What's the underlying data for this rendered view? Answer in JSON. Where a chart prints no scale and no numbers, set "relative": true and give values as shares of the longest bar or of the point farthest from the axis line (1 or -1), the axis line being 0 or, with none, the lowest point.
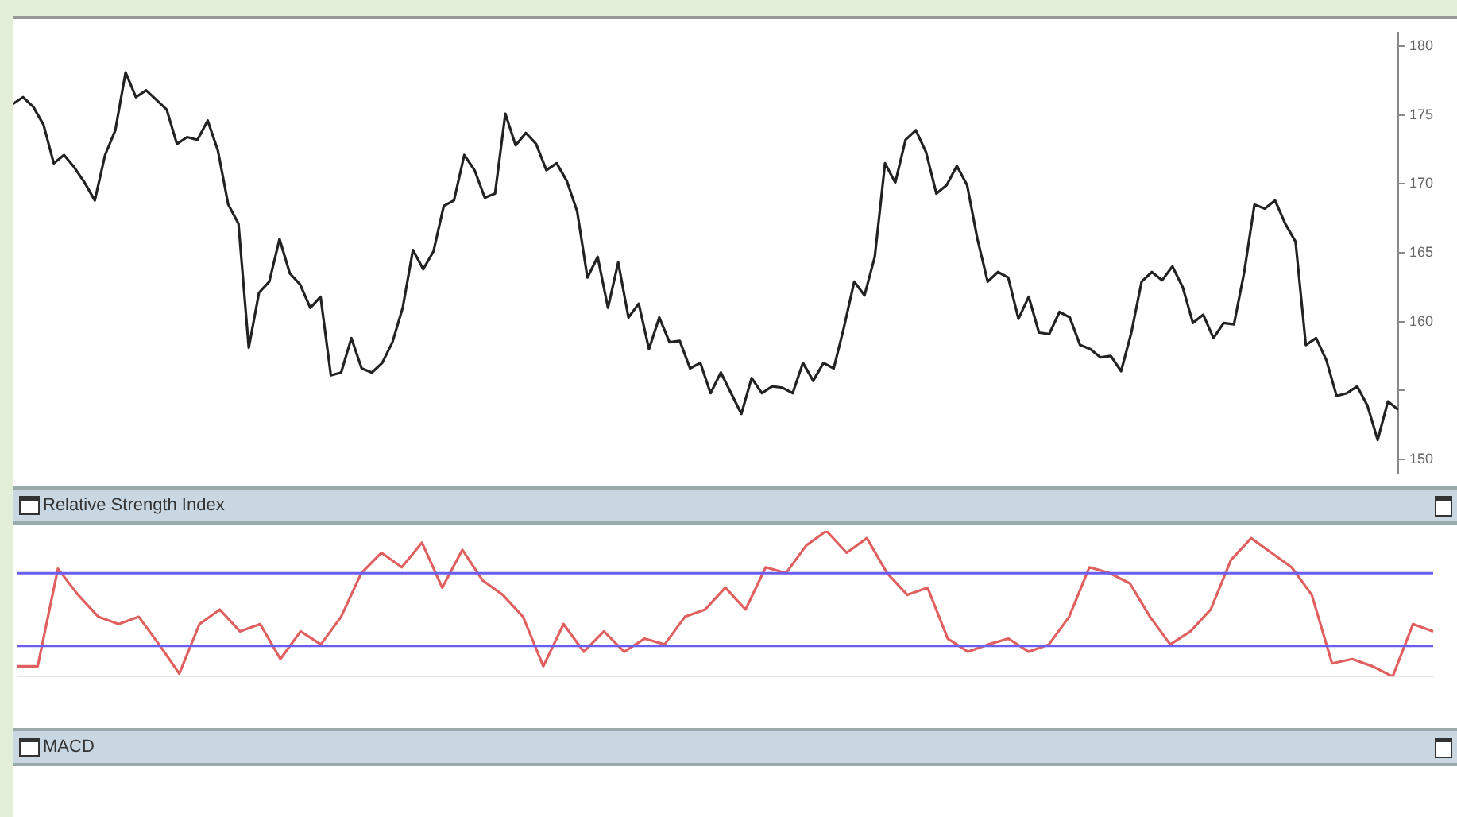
{
  "chart_data": [
    {
      "type": "line",
      "categories": [
        null,
        null,
        null,
        null,
        null,
        null,
        null,
        null,
        null,
        null,
        null,
        null,
        null,
        null,
        null,
        null,
        null,
        null,
        null,
        null,
        null,
        null,
        null,
        null,
        null,
        null,
        null,
        null,
        null,
        null,
        null,
        null,
        null,
        null,
        null,
        null,
        null,
        null,
        null,
        null,
        null,
        null,
        null,
        null,
        null,
        null,
        null,
        null,
        null,
        null,
        null,
        null,
        null,
        null,
        null,
        null,
        null,
        null,
        null,
        null,
        null,
        null,
        null,
        null,
        null,
        null,
        null,
        null,
        null,
        null,
        null,
        null,
        null,
        null,
        null,
        null,
        null,
        null,
        null,
        null,
        null,
        null,
        null,
        null,
        null,
        null,
        null,
        null,
        null,
        null,
        null,
        null,
        null,
        null,
        null,
        null,
        null,
        null,
        null,
        null,
        null,
        null,
        null,
        null,
        null,
        null,
        null,
        null,
        null,
        null,
        null,
        null,
        null,
        null,
        null,
        null,
        null,
        null,
        null,
        null,
        null,
        null,
        null,
        null,
        null,
        null,
        null,
        null,
        null,
        null,
        null,
        null,
        null,
        null,
        null,
        null
      ],
      "series": [
        {
          "color": "#222222",
          "values": [
            175.8,
            176.3,
            175.6,
            174.3,
            171.5,
            172.1,
            171.2,
            170.1,
            168.8,
            172.1,
            173.9,
            178.1,
            176.3,
            176.8,
            176.1,
            175.4,
            172.9,
            173.4,
            173.2,
            174.6,
            172.4,
            168.5,
            167.1,
            158.1,
            162.1,
            162.9,
            166.0,
            163.5,
            162.7,
            161.0,
            161.8,
            156.1,
            156.3,
            158.8,
            156.6,
            156.3,
            157.0,
            158.5,
            161.0,
            165.2,
            163.8,
            165.1,
            168.4,
            168.8,
            172.1,
            171.0,
            169.0,
            169.3,
            175.1,
            172.8,
            173.7,
            172.9,
            171.0,
            171.5,
            170.2,
            168.0,
            163.2,
            164.7,
            161.0,
            164.3,
            160.3,
            161.3,
            158.0,
            160.3,
            158.5,
            158.6,
            156.6,
            157.0,
            154.8,
            156.3,
            154.8,
            153.3,
            155.9,
            154.8,
            155.3,
            155.2,
            154.8,
            157.0,
            155.7,
            157.0,
            156.6,
            159.6,
            162.9,
            161.9,
            164.7,
            171.5,
            170.1,
            173.2,
            173.9,
            172.3,
            169.3,
            169.9,
            171.3,
            169.9,
            166.0,
            162.9,
            163.6,
            163.2,
            160.2,
            161.8,
            159.2,
            159.1,
            160.7,
            160.3,
            158.3,
            158.0,
            157.4,
            157.5,
            156.4,
            159.2,
            162.9,
            163.6,
            163.0,
            164.0,
            162.5,
            159.9,
            160.5,
            158.8,
            159.9,
            159.8,
            163.6,
            168.5,
            168.2,
            168.8,
            167.1,
            165.8,
            158.3,
            158.8,
            157.2,
            154.6,
            154.8,
            155.3,
            153.9,
            151.4,
            154.2,
            153.6
          ]
        }
      ],
      "ylim": [
        149,
        181
      ],
      "yticks": [
        150,
        {
          "value": 155,
          "label": null
        },
        160,
        165,
        170,
        175,
        180
      ],
      "tick_labels": "y"
    },
    {
      "type": "line",
      "title": "Relative Strength Index",
      "relative": true,
      "categories": [
        null,
        null,
        null,
        null,
        null,
        null,
        null,
        null,
        null,
        null,
        null,
        null,
        null,
        null,
        null,
        null,
        null,
        null,
        null,
        null,
        null,
        null,
        null,
        null,
        null,
        null,
        null,
        null,
        null,
        null,
        null,
        null,
        null,
        null,
        null,
        null,
        null,
        null,
        null,
        null,
        null,
        null,
        null,
        null,
        null,
        null,
        null,
        null,
        null,
        null,
        null,
        null,
        null,
        null,
        null,
        null,
        null,
        null,
        null,
        null,
        null,
        null,
        null,
        null,
        null,
        null,
        null,
        null,
        null,
        null,
        null
      ],
      "series": [
        {
          "color": "#e06060",
          "values": [
            0.07,
            0.07,
            0.74,
            0.56,
            0.41,
            0.36,
            0.41,
            0.22,
            0.02,
            0.36,
            0.46,
            0.31,
            0.36,
            0.12,
            0.31,
            0.22,
            0.41,
            0.71,
            0.85,
            0.75,
            0.92,
            0.61,
            0.87,
            0.66,
            0.56,
            0.41,
            0.07,
            0.36,
            0.17,
            0.31,
            0.17,
            0.26,
            0.22,
            0.41,
            0.46,
            0.61,
            0.46,
            0.75,
            0.71,
            0.9,
            1,
            0.85,
            0.95,
            0.71,
            0.56,
            0.61,
            0.26,
            0.17,
            0.22,
            0.26,
            0.17,
            0.22,
            0.41,
            0.75,
            0.71,
            0.64,
            0.41,
            0.22,
            0.31,
            0.46,
            0.8,
            0.95,
            0.85,
            0.75,
            0.56,
            0.09,
            0.12,
            0.07,
            0,
            0.36,
            0.31
          ]
        }
      ],
      "ref_lines": [
        {
          "axis": "y",
          "value": 0.71,
          "color": "#6a5ef0"
        },
        {
          "axis": "y",
          "value": 0.21,
          "color": "#6a5ef0"
        }
      ]
    },
    {
      "type": "other",
      "title": "MACD"
    }
  ]
}
